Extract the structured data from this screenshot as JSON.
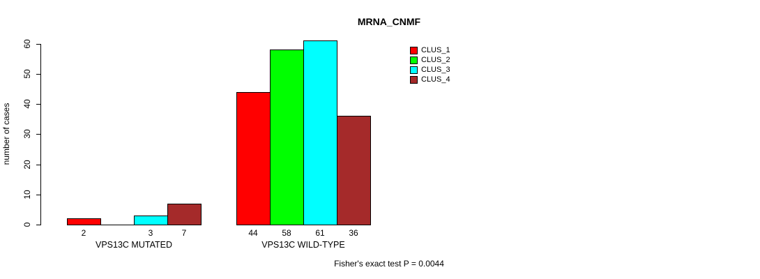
{
  "chart_data": {
    "type": "bar",
    "title": "MRNA_CNMF",
    "xlabel": "",
    "ylabel": "number of cases",
    "annotation": "Fisher's exact test P = 0.0044",
    "categories": [
      "VPS13C MUTATED",
      "VPS13C WILD-TYPE"
    ],
    "series": [
      {
        "name": "CLUS_1",
        "color": "#ff0000",
        "values": [
          2,
          44
        ]
      },
      {
        "name": "CLUS_2",
        "color": "#00ff00",
        "values": [
          0,
          58
        ]
      },
      {
        "name": "CLUS_3",
        "color": "#00ffff",
        "values": [
          3,
          61
        ]
      },
      {
        "name": "CLUS_4",
        "color": "#a52a2a",
        "values": [
          7,
          36
        ]
      }
    ],
    "ylim": [
      0,
      60
    ],
    "yticks": [
      0,
      10,
      20,
      30,
      40,
      50,
      60
    ],
    "grid": false,
    "bar_value_labels": true,
    "zero_value_labels_hidden": true,
    "legend_position": "top-right",
    "axis_color": "#000000",
    "bar_border_color": "#000000"
  }
}
